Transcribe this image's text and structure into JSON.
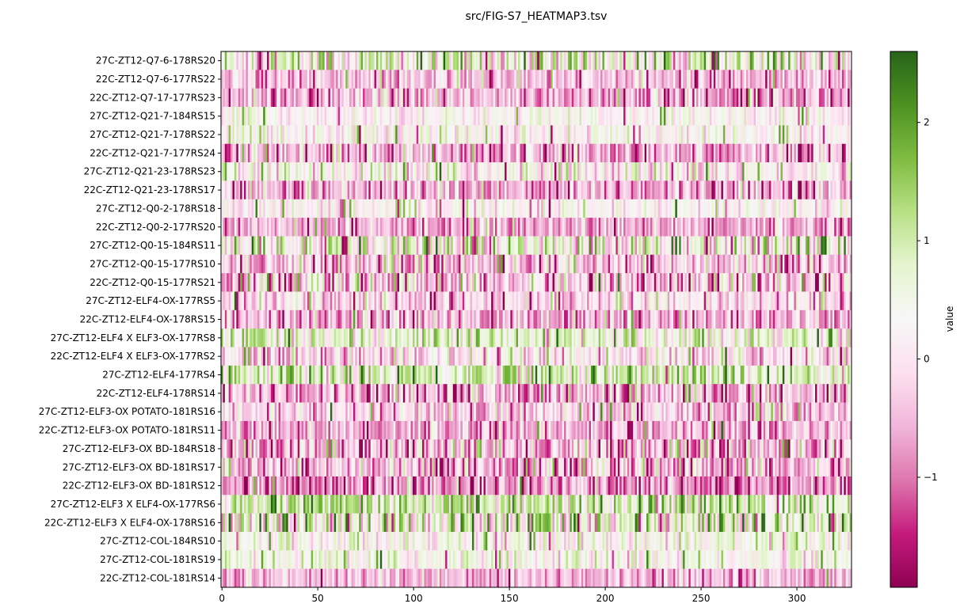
{
  "chart_data": {
    "type": "heatmap",
    "title": "src/FIG-S7_HEATMAP3.tsv",
    "xlabel": "",
    "ylabel": "",
    "colorbar_label": "value",
    "colormap": "PiYG",
    "n_columns": 329,
    "x_ticks": [
      0,
      50,
      100,
      150,
      200,
      250,
      300
    ],
    "x_tick_labels": [
      "0",
      "50",
      "100",
      "150",
      "200",
      "250",
      "300"
    ],
    "colorbar_range": [
      -1.93,
      2.6
    ],
    "colorbar_ticks": [
      2,
      1,
      0,
      -1
    ],
    "colorbar_tick_labels": [
      "2",
      "1",
      "0",
      "−1"
    ],
    "colormap_colors": [
      "#8e0152",
      "#c51b7d",
      "#de77ae",
      "#f1b6da",
      "#fde0ef",
      "#f7f7f7",
      "#e6f5d0",
      "#b8e186",
      "#7fbc41",
      "#4d9221",
      "#276419"
    ],
    "rows": [
      {
        "label": "27C-ZT12-Q7-6-178RS20",
        "approx_mean": 0.5,
        "spread": 0.9
      },
      {
        "label": "22C-ZT12-Q7-6-177RS22",
        "approx_mean": -0.45,
        "spread": 0.5
      },
      {
        "label": "22C-ZT12-Q7-17-177RS23",
        "approx_mean": -0.6,
        "spread": 0.6
      },
      {
        "label": "27C-ZT12-Q21-7-184RS15",
        "approx_mean": 0.25,
        "spread": 0.35
      },
      {
        "label": "27C-ZT12-Q21-7-178RS22",
        "approx_mean": 0.3,
        "spread": 0.45
      },
      {
        "label": "22C-ZT12-Q21-7-177RS24",
        "approx_mean": -0.55,
        "spread": 0.6
      },
      {
        "label": "27C-ZT12-Q21-23-178RS23",
        "approx_mean": 0.2,
        "spread": 0.6
      },
      {
        "label": "22C-ZT12-Q21-23-178RS17",
        "approx_mean": -0.55,
        "spread": 0.6
      },
      {
        "label": "27C-ZT12-Q0-2-178RS18",
        "approx_mean": 0.2,
        "spread": 0.4
      },
      {
        "label": "22C-ZT12-Q0-2-177RS20",
        "approx_mean": -0.55,
        "spread": 0.5
      },
      {
        "label": "27C-ZT12-Q0-15-184RS11",
        "approx_mean": 0.4,
        "spread": 0.9
      },
      {
        "label": "27C-ZT12-Q0-15-177RS10",
        "approx_mean": -0.4,
        "spread": 0.7
      },
      {
        "label": "22C-ZT12-Q0-15-177RS21",
        "approx_mean": -0.3,
        "spread": 0.8
      },
      {
        "label": "27C-ZT12-ELF4-OX-177RS5",
        "approx_mean": -0.2,
        "spread": 0.6
      },
      {
        "label": "22C-ZT12-ELF4-OX-178RS15",
        "approx_mean": -0.5,
        "spread": 0.6
      },
      {
        "label": "27C-ZT12-ELF4 X ELF3-OX-177RS8",
        "approx_mean": 0.7,
        "spread": 0.6
      },
      {
        "label": "22C-ZT12-ELF4 X ELF3-OX-177RS2",
        "approx_mean": -0.1,
        "spread": 0.6
      },
      {
        "label": "27C-ZT12-ELF4-177RS4",
        "approx_mean": 0.9,
        "spread": 0.7
      },
      {
        "label": "22C-ZT12-ELF4-178RS14",
        "approx_mean": -0.5,
        "spread": 0.7
      },
      {
        "label": "27C-ZT12-ELF3-OX POTATO-181RS16",
        "approx_mean": -0.3,
        "spread": 0.6
      },
      {
        "label": "22C-ZT12-ELF3-OX POTATO-181RS11",
        "approx_mean": -0.55,
        "spread": 0.55
      },
      {
        "label": "27C-ZT12-ELF3-OX BD-184RS18",
        "approx_mean": -0.45,
        "spread": 0.8
      },
      {
        "label": "27C-ZT12-ELF3-OX BD-181RS17",
        "approx_mean": -0.5,
        "spread": 0.75
      },
      {
        "label": "22C-ZT12-ELF3-OX BD-181RS12",
        "approx_mean": -0.8,
        "spread": 0.6
      },
      {
        "label": "27C-ZT12-ELF3 X ELF4-OX-177RS6",
        "approx_mean": 0.9,
        "spread": 0.7
      },
      {
        "label": "22C-ZT12-ELF3 X ELF4-OX-178RS16",
        "approx_mean": 0.6,
        "spread": 1.0
      },
      {
        "label": "27C-ZT12-COL-184RS10",
        "approx_mean": 0.45,
        "spread": 0.45
      },
      {
        "label": "27C-ZT12-COL-181RS19",
        "approx_mean": 0.4,
        "spread": 0.45
      },
      {
        "label": "22C-ZT12-COL-181RS14",
        "approx_mean": -0.45,
        "spread": 0.45
      }
    ]
  }
}
